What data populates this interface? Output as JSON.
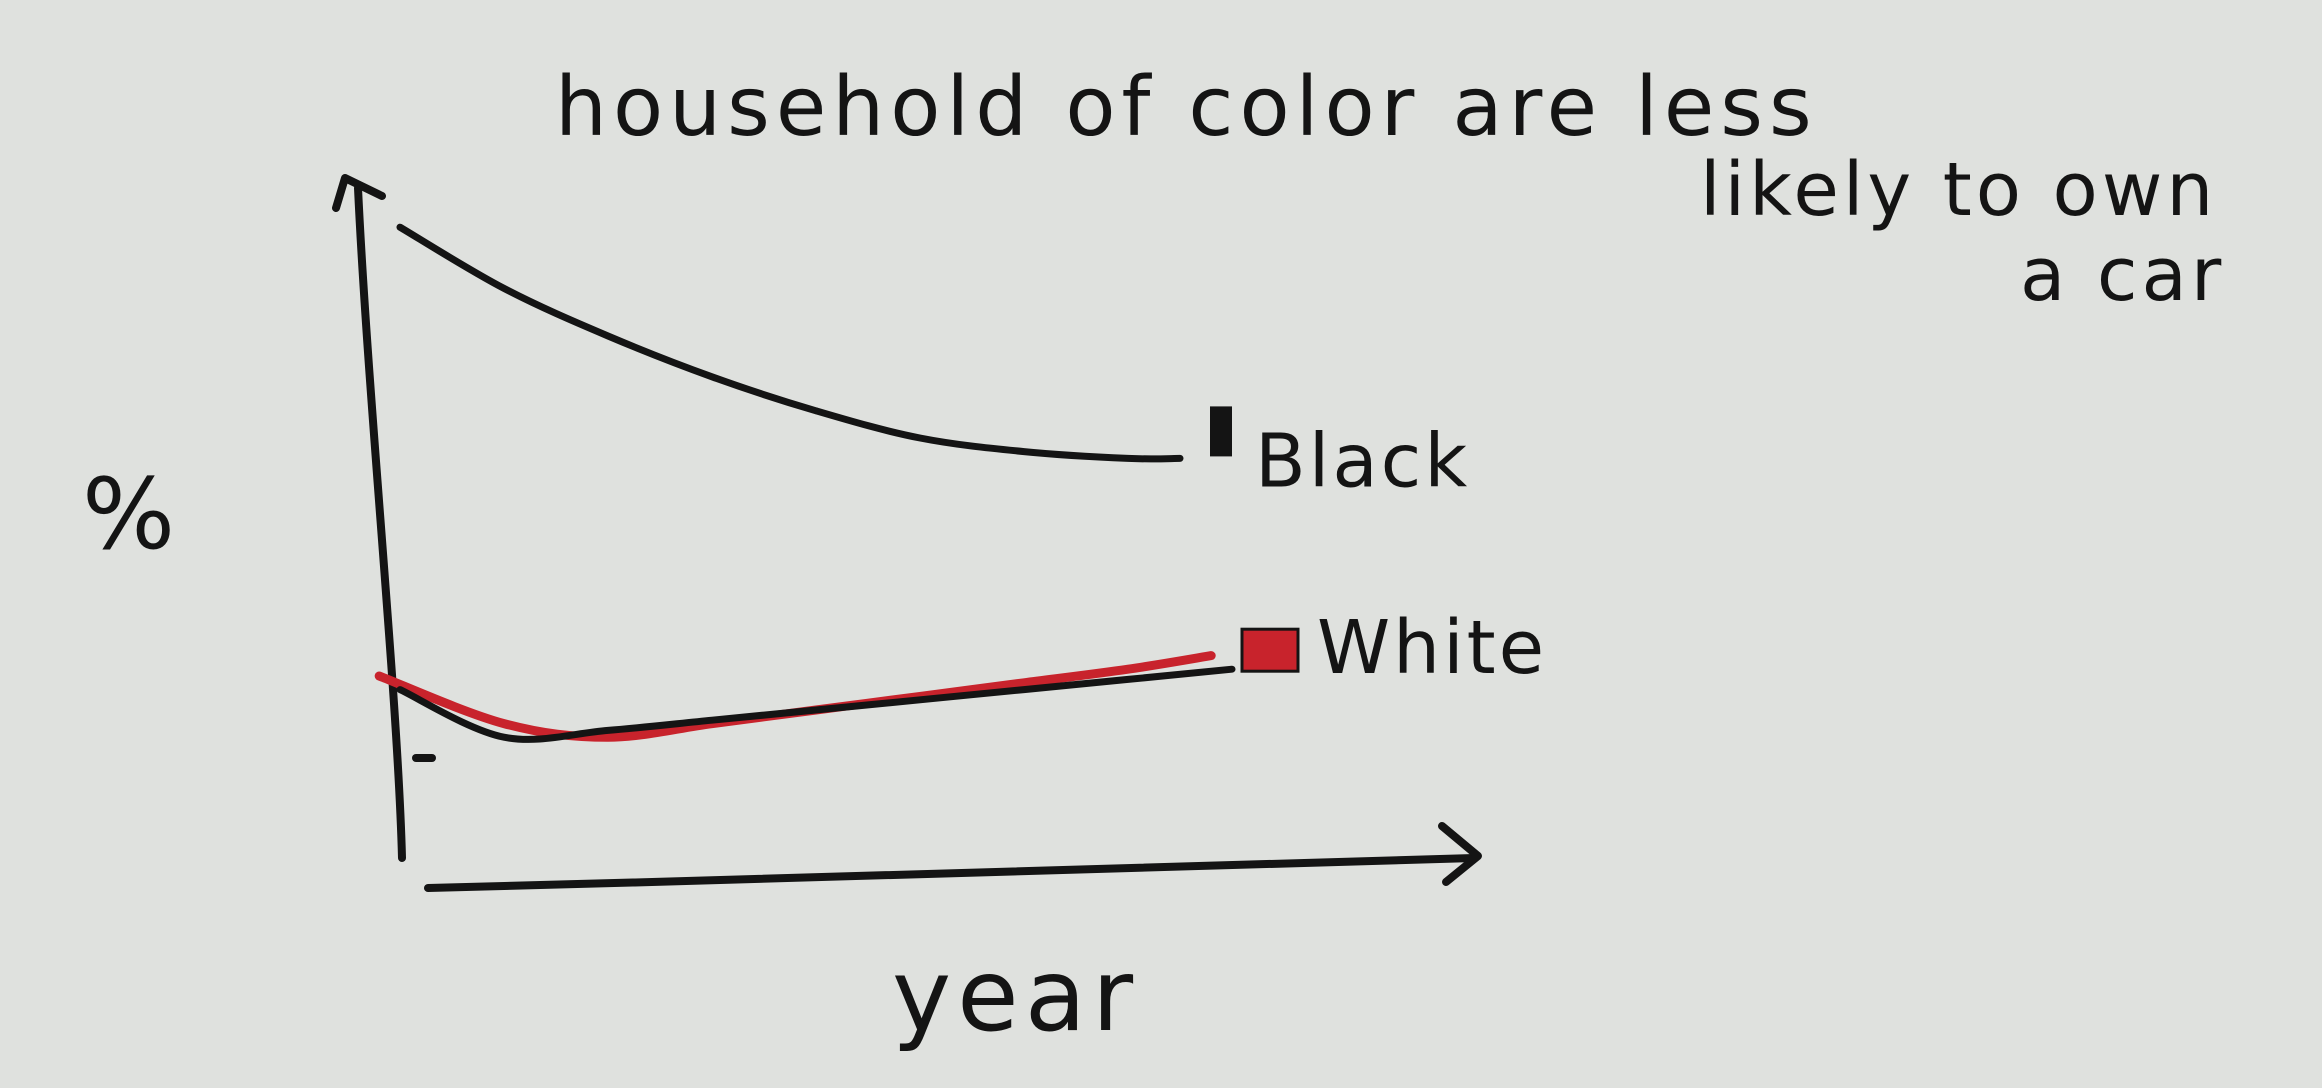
{
  "chart_data": {
    "type": "line",
    "title": "household of color are less likely to own a car",
    "title_lines": [
      "household of color are less",
      "likely to own",
      "a car"
    ],
    "xlabel": "year",
    "ylabel": "%",
    "grid": false,
    "legend": "inline at line ends",
    "xlim": [
      0,
      10
    ],
    "ylim": [
      0,
      10
    ],
    "series": [
      {
        "name": "Black",
        "color": "#141414",
        "marker_color": "#141414",
        "x": [
          0,
          1,
          2,
          3,
          4,
          5,
          6,
          7,
          7.5
        ],
        "y": [
          9.6,
          8.7,
          8.0,
          7.4,
          6.9,
          6.5,
          6.3,
          6.2,
          6.2
        ]
      },
      {
        "name": "White",
        "label": "White",
        "color": "#141414",
        "marker_color": "#c8232c",
        "x": [
          0,
          1,
          2,
          3,
          4,
          5,
          6,
          7,
          8
        ],
        "y": [
          2.8,
          2.1,
          2.2,
          2.35,
          2.5,
          2.65,
          2.8,
          2.95,
          3.1
        ]
      }
    ],
    "accent_line": {
      "color": "#c8232c",
      "x": [
        -0.2,
        1,
        2,
        3,
        4,
        5,
        6,
        7,
        7.8
      ],
      "y": [
        3.0,
        2.3,
        2.1,
        2.3,
        2.5,
        2.7,
        2.9,
        3.1,
        3.3
      ]
    }
  }
}
